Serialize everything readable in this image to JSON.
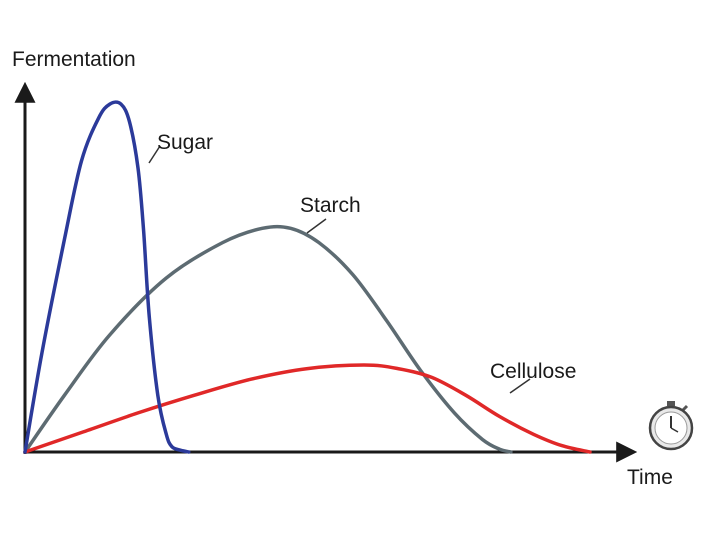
{
  "chart_data": {
    "type": "line",
    "ylabel": "Fermentation",
    "xlabel": "Time",
    "title": "",
    "xlim": [
      0,
      10
    ],
    "ylim": [
      0,
      10
    ],
    "grid": false,
    "legend": "none",
    "icons": [
      "stopwatch-icon"
    ],
    "series": [
      {
        "name": "Sugar",
        "color": "#2b3a9a",
        "x": [
          0,
          0.3,
          0.7,
          1.0,
          1.3,
          1.5,
          1.7,
          1.85,
          2.0,
          2.1,
          2.2,
          2.35,
          2.5,
          2.6,
          2.75,
          2.9
        ],
        "y": [
          0,
          2.8,
          6.0,
          8.2,
          9.4,
          9.8,
          9.8,
          9.3,
          8.0,
          6.2,
          3.8,
          1.6,
          0.5,
          0.15,
          0.05,
          0
        ]
      },
      {
        "name": "Starch",
        "color": "#5d6b72",
        "x": [
          0,
          0.7,
          1.5,
          2.5,
          3.5,
          4.2,
          4.7,
          5.2,
          5.8,
          6.4,
          7.0,
          7.6,
          8.1,
          8.4,
          8.6
        ],
        "y": [
          0,
          1.6,
          3.3,
          4.9,
          5.9,
          6.3,
          6.3,
          5.9,
          5.0,
          3.7,
          2.3,
          1.1,
          0.35,
          0.08,
          0
        ]
      },
      {
        "name": "Cellulose",
        "color": "#e02828",
        "x": [
          0,
          1.0,
          2.0,
          3.0,
          4.0,
          5.0,
          6.0,
          6.6,
          7.2,
          7.8,
          8.4,
          9.0,
          9.5,
          10.0
        ],
        "y": [
          0,
          0.55,
          1.1,
          1.6,
          2.05,
          2.35,
          2.45,
          2.35,
          2.1,
          1.6,
          1.0,
          0.5,
          0.18,
          0
        ]
      }
    ]
  }
}
